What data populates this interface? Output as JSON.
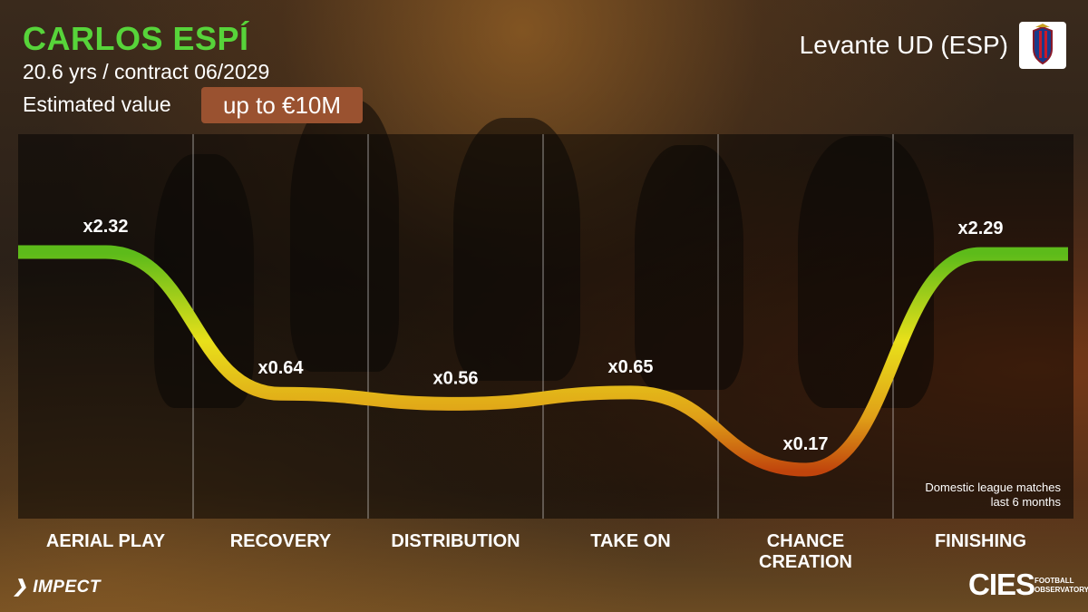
{
  "player": {
    "name": "CARLOS ESPÍ",
    "age_contract": "20.6 yrs / contract 06/2029",
    "value_label": "Estimated value",
    "value": "up to €10M"
  },
  "club": {
    "name": "Levante UD (ESP)"
  },
  "note": {
    "line1": "Domestic league matches",
    "line2": "last 6 months"
  },
  "branding": {
    "left": "IMPECT",
    "right": "CIES",
    "right_sub1": "FOOTBALL",
    "right_sub2": "OBSERVATORY"
  },
  "colors": {
    "title_green": "#57d43a",
    "line_high": "#6cc21a",
    "line_mid": "#e8d81c",
    "line_low": "#c8500c",
    "badge": "#9a5230"
  },
  "chart_data": {
    "type": "line",
    "categories": [
      "AERIAL PLAY",
      "RECOVERY",
      "DISTRIBUTION",
      "TAKE ON",
      "CHANCE CREATION",
      "FINISHING"
    ],
    "values": [
      2.32,
      0.64,
      0.56,
      0.65,
      0.17,
      2.29
    ],
    "labels": [
      "x2.32",
      "x0.64",
      "x0.56",
      "x0.65",
      "x0.17",
      "x2.29"
    ],
    "ylim": [
      0,
      2.5
    ]
  }
}
